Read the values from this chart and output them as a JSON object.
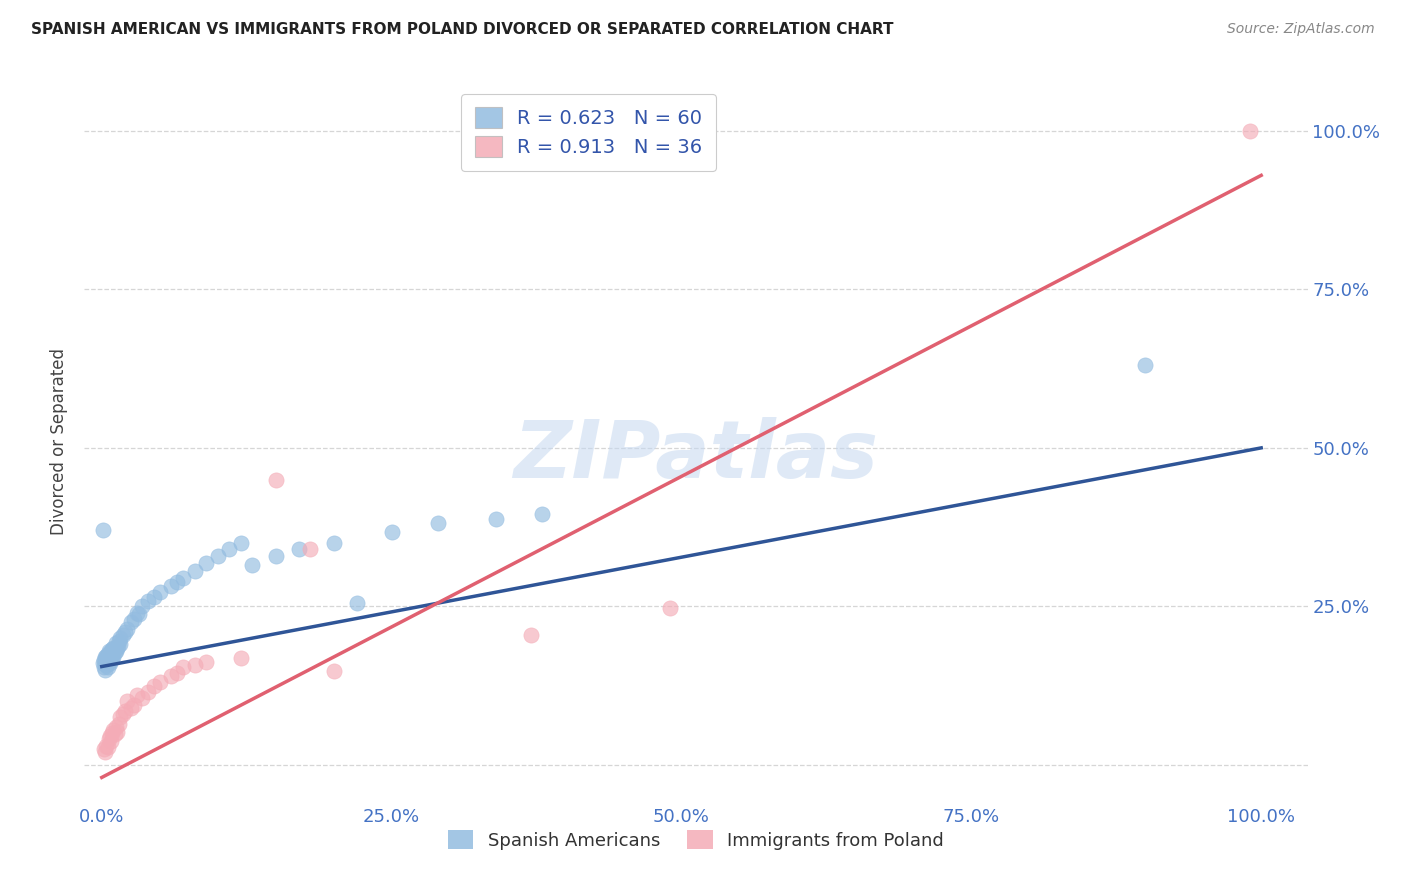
{
  "title": "SPANISH AMERICAN VS IMMIGRANTS FROM POLAND DIVORCED OR SEPARATED CORRELATION CHART",
  "source": "Source: ZipAtlas.com",
  "tick_color": "#4472c4",
  "ylabel": "Divorced or Separated",
  "r_blue": 0.623,
  "n_blue": 60,
  "r_pink": 0.913,
  "n_pink": 36,
  "blue_color": "#93bce0",
  "blue_line_color": "#2f5597",
  "pink_color": "#f4acb7",
  "pink_line_color": "#e06070",
  "watermark_text": "ZIPatlas",
  "legend_label_blue": "Spanish Americans",
  "legend_label_pink": "Immigrants from Poland",
  "blue_scatter_x": [
    0.001,
    0.002,
    0.002,
    0.003,
    0.003,
    0.003,
    0.004,
    0.004,
    0.004,
    0.005,
    0.005,
    0.006,
    0.006,
    0.006,
    0.007,
    0.007,
    0.008,
    0.008,
    0.009,
    0.009,
    0.01,
    0.01,
    0.011,
    0.012,
    0.012,
    0.013,
    0.014,
    0.015,
    0.016,
    0.016,
    0.018,
    0.02,
    0.022,
    0.025,
    0.028,
    0.03,
    0.032,
    0.035,
    0.04,
    0.045,
    0.05,
    0.06,
    0.065,
    0.07,
    0.08,
    0.09,
    0.1,
    0.11,
    0.12,
    0.13,
    0.15,
    0.17,
    0.2,
    0.22,
    0.25,
    0.29,
    0.34,
    0.38,
    0.001,
    0.9
  ],
  "blue_scatter_y": [
    0.16,
    0.155,
    0.165,
    0.15,
    0.162,
    0.17,
    0.158,
    0.168,
    0.172,
    0.155,
    0.175,
    0.162,
    0.17,
    0.18,
    0.16,
    0.178,
    0.165,
    0.175,
    0.168,
    0.182,
    0.17,
    0.185,
    0.178,
    0.18,
    0.192,
    0.185,
    0.188,
    0.195,
    0.19,
    0.2,
    0.205,
    0.21,
    0.215,
    0.225,
    0.23,
    0.24,
    0.238,
    0.25,
    0.258,
    0.265,
    0.272,
    0.282,
    0.288,
    0.295,
    0.305,
    0.318,
    0.33,
    0.34,
    0.35,
    0.315,
    0.33,
    0.34,
    0.35,
    0.255,
    0.368,
    0.382,
    0.388,
    0.395,
    0.37,
    0.63
  ],
  "pink_scatter_x": [
    0.002,
    0.003,
    0.004,
    0.005,
    0.006,
    0.007,
    0.008,
    0.009,
    0.01,
    0.011,
    0.012,
    0.013,
    0.015,
    0.016,
    0.018,
    0.02,
    0.022,
    0.025,
    0.028,
    0.03,
    0.035,
    0.04,
    0.045,
    0.05,
    0.06,
    0.065,
    0.07,
    0.08,
    0.09,
    0.12,
    0.15,
    0.18,
    0.2,
    0.37,
    0.49,
    0.99
  ],
  "pink_scatter_y": [
    0.025,
    0.02,
    0.03,
    0.028,
    0.04,
    0.045,
    0.038,
    0.05,
    0.055,
    0.048,
    0.06,
    0.052,
    0.065,
    0.075,
    0.08,
    0.085,
    0.1,
    0.09,
    0.095,
    0.11,
    0.105,
    0.115,
    0.125,
    0.13,
    0.14,
    0.145,
    0.155,
    0.158,
    0.162,
    0.168,
    0.45,
    0.34,
    0.148,
    0.205,
    0.248,
    1.0
  ],
  "xlim": [
    -0.015,
    1.04
  ],
  "ylim": [
    -0.06,
    1.08
  ],
  "xticks": [
    0.0,
    0.25,
    0.5,
    0.75,
    1.0
  ],
  "yticks": [
    0.0,
    0.25,
    0.5,
    0.75,
    1.0
  ],
  "xtick_labels": [
    "0.0%",
    "25.0%",
    "50.0%",
    "75.0%",
    "100.0%"
  ],
  "ytick_labels_right": [
    "",
    "25.0%",
    "50.0%",
    "75.0%",
    "100.0%"
  ],
  "blue_line_x0": 0.0,
  "blue_line_y0": 0.155,
  "blue_line_x1": 1.0,
  "blue_line_y1": 0.5,
  "pink_line_x0": 0.0,
  "pink_line_y0": -0.02,
  "pink_line_x1": 1.0,
  "pink_line_y1": 0.93
}
